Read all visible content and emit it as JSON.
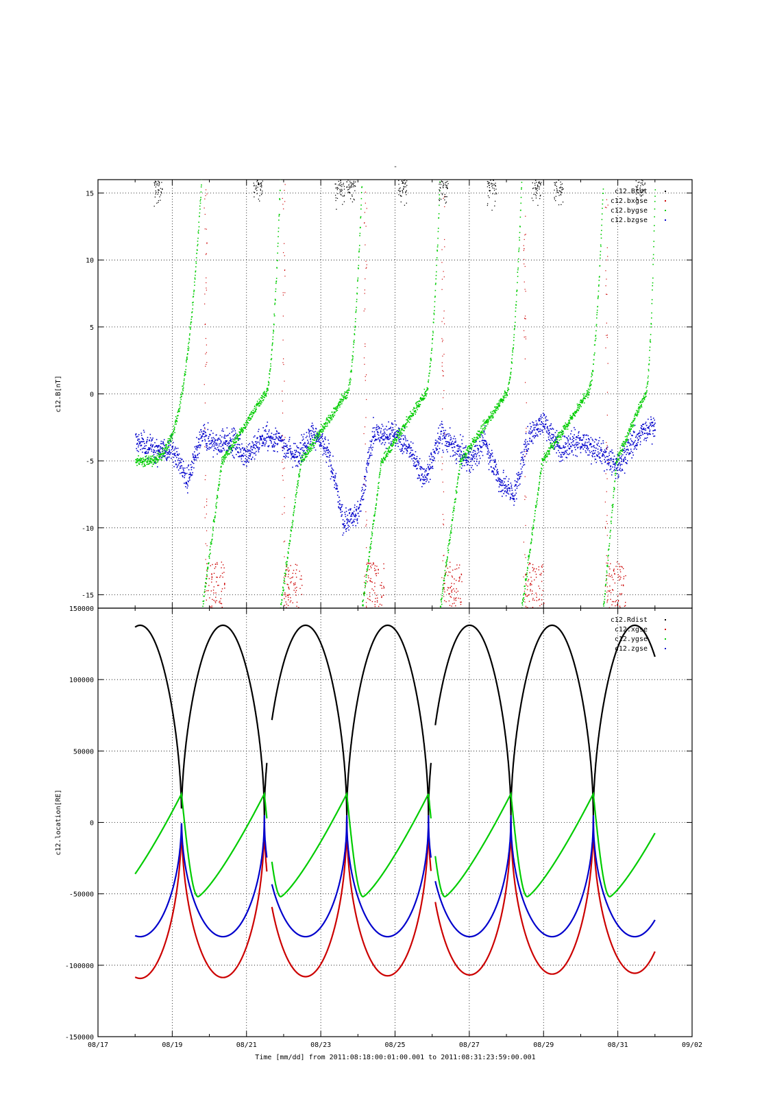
{
  "page_title": "-",
  "xaxis": {
    "title": "Time [mm/dd]  from 2011:08:18:00:01:00.001  to  2011:08:31:23:59:00.001",
    "tick_labels": [
      "08/17",
      "08/19",
      "08/21",
      "08/23",
      "08/25",
      "08/27",
      "08/29",
      "08/31",
      "09/02"
    ],
    "range_days": [
      0,
      16
    ],
    "data_range_days": [
      1.0,
      15.0
    ]
  },
  "colors": {
    "black": "#000000",
    "red": "#cc0000",
    "green": "#00cc00",
    "blue": "#0000cc"
  },
  "chart_data": [
    {
      "type": "scatter",
      "ylabel": "c12.B[nT]",
      "ylim": [
        -16,
        16
      ],
      "ytick_labels": [
        "15",
        "10",
        "5",
        "0",
        "-5",
        "-10",
        "-15"
      ],
      "ytick_values": [
        15,
        10,
        5,
        0,
        -5,
        -10,
        -15
      ],
      "grid": true,
      "legend": "top-right",
      "series": [
        {
          "name": "c12.Btot",
          "color": "black"
        },
        {
          "name": "c12.bxgse",
          "color": "red"
        },
        {
          "name": "c12.bygse",
          "color": "green"
        },
        {
          "name": "c12.bzgse",
          "color": "blue"
        }
      ],
      "x_units": "days since 08/17",
      "bygse_jump_days": [
        2.8,
        4.9,
        7.1,
        9.2,
        11.4,
        13.6
      ],
      "bzgse_baseline": [
        [
          1.0,
          -3.5
        ],
        [
          1.6,
          -4.2
        ],
        [
          2.0,
          -4.0
        ],
        [
          2.4,
          -6.5
        ],
        [
          2.8,
          -3.0
        ],
        [
          3.2,
          -3.8
        ],
        [
          3.6,
          -3.4
        ],
        [
          4.0,
          -4.6
        ],
        [
          4.4,
          -3.2
        ],
        [
          4.9,
          -3.5
        ],
        [
          5.3,
          -4.6
        ],
        [
          5.8,
          -2.8
        ],
        [
          6.2,
          -4.5
        ],
        [
          6.6,
          -9.5
        ],
        [
          7.0,
          -9.0
        ],
        [
          7.4,
          -3.0
        ],
        [
          8.0,
          -3.0
        ],
        [
          8.4,
          -4.2
        ],
        [
          8.8,
          -6.5
        ],
        [
          9.2,
          -3.0
        ],
        [
          9.6,
          -4.0
        ],
        [
          10.0,
          -5.0
        ],
        [
          10.4,
          -3.5
        ],
        [
          10.8,
          -6.5
        ],
        [
          11.2,
          -7.5
        ],
        [
          11.6,
          -3.0
        ],
        [
          12.0,
          -2.0
        ],
        [
          12.4,
          -4.0
        ],
        [
          12.9,
          -3.5
        ],
        [
          13.3,
          -4.0
        ],
        [
          13.6,
          -4.5
        ],
        [
          14.0,
          -5.5
        ],
        [
          14.4,
          -3.5
        ],
        [
          14.8,
          -2.5
        ],
        [
          15.0,
          -2.4
        ]
      ]
    },
    {
      "type": "line",
      "ylabel": "c12.location[RE]",
      "ylim": [
        -150000,
        150000
      ],
      "ytick_labels": [
        "150000",
        "100000",
        "50000",
        "0",
        "-50000",
        "-100000",
        "-150000"
      ],
      "ytick_values": [
        150000,
        100000,
        50000,
        0,
        -50000,
        -100000,
        -150000
      ],
      "grid": true,
      "legend": "top-right",
      "series": [
        {
          "name": "c12.Rdist",
          "color": "black"
        },
        {
          "name": "c12.xgse",
          "color": "red"
        },
        {
          "name": "c12.ygse",
          "color": "green"
        },
        {
          "name": "c12.zgse",
          "color": "blue"
        }
      ],
      "x_units": "days since 08/17",
      "perigee_days": [
        2.25,
        4.48,
        6.7,
        8.9,
        11.12,
        13.34
      ],
      "data_gap_days": [
        [
          4.55,
          4.68
        ],
        [
          8.97,
          9.08
        ]
      ],
      "rdist_peak": 138000,
      "rdist_perigee": 5000,
      "xgse_min": -108000,
      "xgse_peak": 5000,
      "ygse_max": 20000,
      "ygse_min": -52000,
      "zgse_min": -80000,
      "zgse_peak": 5000
    }
  ]
}
